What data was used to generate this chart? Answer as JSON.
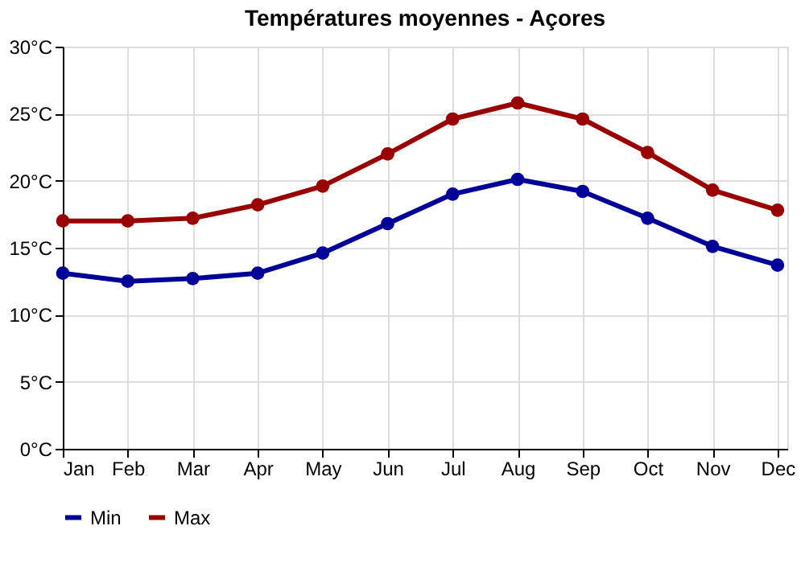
{
  "chart_data": {
    "type": "line",
    "title": "Températures moyennes - Açores",
    "categories": [
      "Jan",
      "Feb",
      "Mar",
      "Apr",
      "May",
      "Jun",
      "Jul",
      "Aug",
      "Sep",
      "Oct",
      "Nov",
      "Dec"
    ],
    "series": [
      {
        "name": "Min",
        "color": "#000099",
        "values": [
          13.1,
          12.5,
          12.7,
          13.1,
          14.6,
          16.8,
          19.0,
          20.1,
          19.2,
          17.2,
          15.1,
          13.7
        ]
      },
      {
        "name": "Max",
        "color": "#990000",
        "values": [
          17.0,
          17.0,
          17.2,
          18.2,
          19.6,
          22.0,
          24.6,
          25.8,
          24.6,
          22.1,
          19.3,
          17.8
        ]
      }
    ],
    "ylim": [
      0,
      30
    ],
    "yticks": [
      {
        "value": 0,
        "label": "0°C"
      },
      {
        "value": 5,
        "label": "5°C"
      },
      {
        "value": 10,
        "label": "10°C"
      },
      {
        "value": 15,
        "label": "15°C"
      },
      {
        "value": 20,
        "label": "20°C"
      },
      {
        "value": 25,
        "label": "25°C"
      },
      {
        "value": 30,
        "label": "30°C"
      }
    ],
    "grid": true,
    "legend": "bottom left",
    "marker": "circle",
    "line_style": "solid"
  }
}
